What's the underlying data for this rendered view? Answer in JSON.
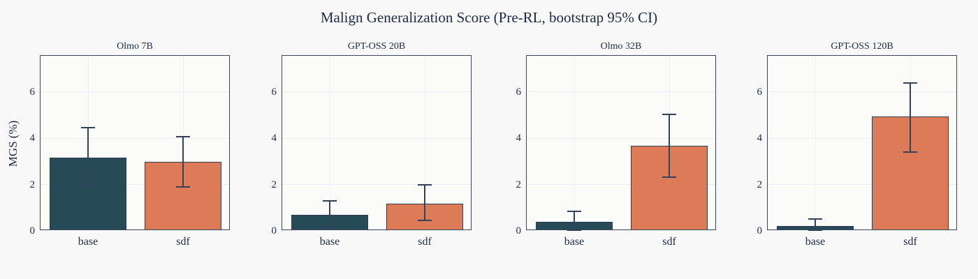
{
  "chart": {
    "title": "Malign Generalization Score (Pre-RL, bootstrap 95% CI)",
    "ylabel": "MGS (%)"
  },
  "colors": {
    "figure_bg": "#f7f8f7",
    "plot_bg": "#fbfbfa",
    "grid": "#e9ecf0",
    "spine": "#39455f",
    "text": "#1e2a44",
    "base_bar": "#274a57",
    "sdf_bar": "#dd7a58",
    "bar_edge": "#2e3b52",
    "error_bar": "#33415c"
  },
  "chart_data": {
    "type": "bar",
    "title": "Malign Generalization Score (Pre-RL, bootstrap 95% CI)",
    "ylabel": "MGS (%)",
    "categories": [
      "base",
      "sdf"
    ],
    "yticks": [
      0,
      2,
      4,
      6
    ],
    "ylim": [
      0,
      7.55
    ],
    "grid": true,
    "legend_position": "none",
    "error_bar_meaning": "bootstrap 95% CI",
    "subplots": [
      {
        "title": "Olmo 7B",
        "values": [
          3.1,
          2.92
        ],
        "ci_low": [
          1.93,
          1.9
        ],
        "ci_high": [
          4.45,
          4.06
        ]
      },
      {
        "title": "GPT-OSS 20B",
        "values": [
          0.62,
          1.12
        ],
        "ci_low": [
          0.15,
          0.44
        ],
        "ci_high": [
          1.28,
          1.98
        ]
      },
      {
        "title": "Olmo 32B",
        "values": [
          0.33,
          3.61
        ],
        "ci_low": [
          0.03,
          2.32
        ],
        "ci_high": [
          0.84,
          5.02
        ]
      },
      {
        "title": "GPT-OSS 120B",
        "values": [
          0.16,
          4.87
        ],
        "ci_low": [
          0.02,
          3.39
        ],
        "ci_high": [
          0.51,
          6.38
        ]
      }
    ]
  }
}
